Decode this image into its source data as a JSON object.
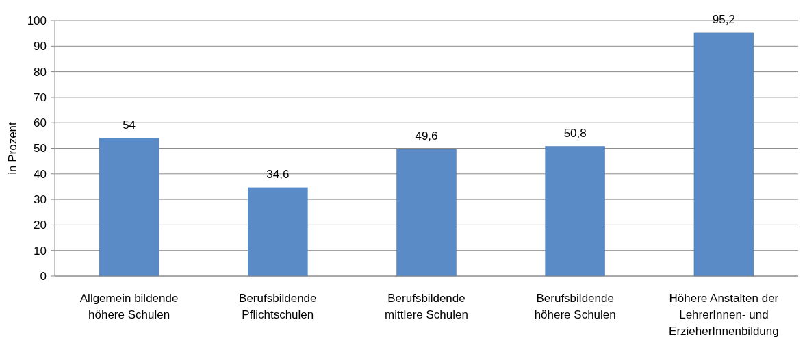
{
  "chart_data": {
    "type": "bar",
    "ylabel": "in Prozent",
    "categories": [
      "Allgemein bildende höhere Schulen",
      "Berufsbildende Pflichtschulen",
      "Berufsbildende mittlere Schulen",
      "Berufsbildende höhere Schulen",
      "Höhere Anstalten der LehrerInnen- und ErzieherInnenbildung"
    ],
    "values": [
      54,
      34.6,
      49.6,
      50.8,
      95.2
    ],
    "color": "#5b8bc6",
    "ylim": [
      0,
      100
    ],
    "yticks": [
      0,
      10,
      20,
      30,
      40,
      50,
      60,
      70,
      80,
      90,
      100
    ],
    "grid": "y",
    "value_labels": [
      "54",
      "34,6",
      "49,6",
      "50,8",
      "95,2"
    ]
  }
}
